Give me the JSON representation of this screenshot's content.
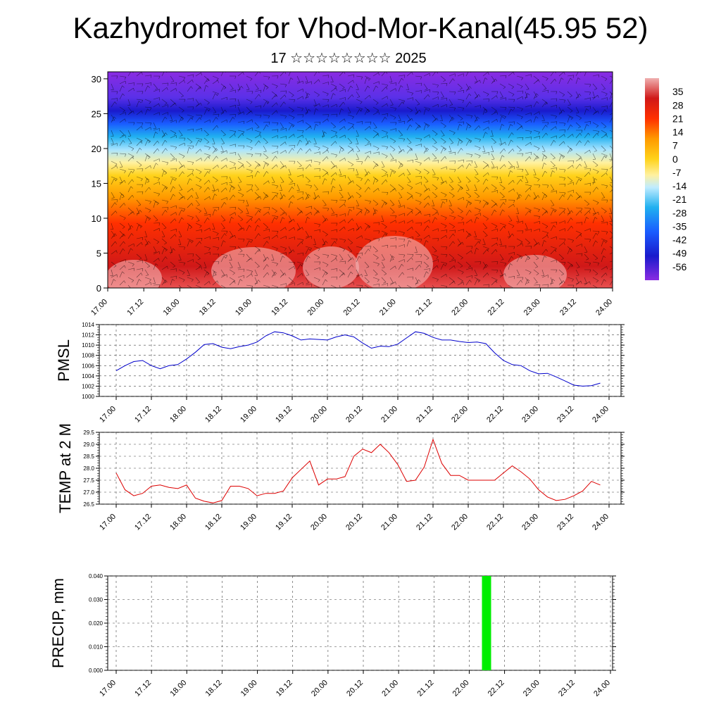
{
  "title": "Kazhydromet for Vhod-Mor-Kanal(45.95 52)",
  "subtitle": "17 ☆☆☆☆☆☆☆☆ 2025",
  "time_ticks": [
    "17.00",
    "17.12",
    "18.00",
    "18.12",
    "19.00",
    "19.12",
    "20.00",
    "20.12",
    "21.00",
    "21.12",
    "22.00",
    "22.12",
    "23.00",
    "23.12",
    "24.00"
  ],
  "chart_data": [
    {
      "type": "heatmap",
      "title": "",
      "xlabel": "",
      "ylabel": "",
      "ylim": [
        0,
        31
      ],
      "yticks": [
        0,
        5,
        10,
        15,
        20,
        25,
        30
      ],
      "colorbar_labels": [
        "35",
        "28",
        "21",
        "14",
        "7",
        "0",
        "-7",
        "-14",
        "-21",
        "-28",
        "-35",
        "-42",
        "-49",
        "-56"
      ],
      "colorbar_range": [
        -63,
        42
      ],
      "colors": {
        "warm": "#cc0000",
        "mid": "#ffd21a",
        "cold": "#1a1aff",
        "top": "#8a2be2"
      },
      "overlay": "wind barbs"
    },
    {
      "type": "line",
      "ylabel": "PMSL",
      "ylim": [
        1000,
        1014
      ],
      "yticks": [
        "1000",
        "1002",
        "1004",
        "1006",
        "1008",
        "1010",
        "1012",
        "1014"
      ],
      "color": "#0000cc",
      "x": [
        0,
        0.125,
        0.25,
        0.375,
        0.5,
        0.625,
        0.75,
        0.875,
        1,
        1.125,
        1.25,
        1.375,
        1.5,
        1.625,
        1.75,
        1.875,
        2,
        2.125,
        2.25,
        2.375,
        2.5,
        2.625,
        2.75,
        2.875,
        3,
        3.125,
        3.25,
        3.375,
        3.5,
        3.625,
        3.75,
        3.875,
        4,
        4.125,
        4.25,
        4.375,
        4.5,
        4.625,
        4.75,
        4.875,
        5,
        5.125,
        5.25,
        5.375,
        5.5,
        5.625,
        5.75,
        5.875,
        6,
        6.125,
        6.25,
        6.375,
        6.5,
        6.625,
        6.75,
        6.875
      ],
      "values": [
        1005.0,
        1006.0,
        1006.8,
        1007.0,
        1006.0,
        1005.4,
        1006.0,
        1006.2,
        1007.3,
        1008.6,
        1010.1,
        1010.3,
        1009.6,
        1009.3,
        1009.7,
        1010.0,
        1010.6,
        1011.8,
        1012.6,
        1012.4,
        1011.8,
        1011.0,
        1011.2,
        1011.1,
        1011.0,
        1011.6,
        1012.0,
        1011.6,
        1010.4,
        1009.4,
        1009.8,
        1009.7,
        1010.2,
        1011.4,
        1012.6,
        1012.3,
        1011.5,
        1011.0,
        1011.0,
        1010.7,
        1010.5,
        1010.6,
        1010.3,
        1008.5,
        1007.0,
        1006.2,
        1006.0,
        1005.0,
        1004.4,
        1004.5,
        1003.8,
        1003.0,
        1002.2,
        1002.0,
        1002.1,
        1002.6
      ]
    },
    {
      "type": "line",
      "ylabel": "TEMP at 2 M",
      "ylim": [
        26.5,
        29.5
      ],
      "yticks": [
        "26.5",
        "27.0",
        "27.5",
        "28.0",
        "28.5",
        "29.0",
        "29.5"
      ],
      "color": "#dd0000",
      "x": [
        0,
        0.125,
        0.25,
        0.375,
        0.5,
        0.625,
        0.75,
        0.875,
        1,
        1.125,
        1.25,
        1.375,
        1.5,
        1.625,
        1.75,
        1.875,
        2,
        2.125,
        2.25,
        2.375,
        2.5,
        2.625,
        2.75,
        2.875,
        3,
        3.125,
        3.25,
        3.375,
        3.5,
        3.625,
        3.75,
        3.875,
        4,
        4.125,
        4.25,
        4.375,
        4.5,
        4.625,
        4.75,
        4.875,
        5,
        5.125,
        5.25,
        5.375,
        5.5,
        5.625,
        5.75,
        5.875,
        6,
        6.125,
        6.25,
        6.375,
        6.5,
        6.625,
        6.75,
        6.875
      ],
      "values": [
        27.8,
        27.1,
        26.85,
        26.95,
        27.25,
        27.3,
        27.2,
        27.15,
        27.3,
        26.75,
        26.62,
        26.55,
        26.65,
        27.25,
        27.25,
        27.15,
        26.85,
        26.95,
        26.95,
        27.05,
        27.6,
        27.95,
        28.3,
        27.3,
        27.55,
        27.55,
        27.65,
        28.5,
        28.8,
        28.65,
        29.0,
        28.65,
        28.15,
        27.45,
        27.5,
        28.05,
        29.2,
        28.2,
        27.7,
        27.7,
        27.5,
        27.5,
        27.5,
        27.5,
        27.8,
        28.1,
        27.85,
        27.55,
        27.1,
        26.8,
        26.65,
        26.7,
        26.85,
        27.05,
        27.45,
        27.3
      ]
    },
    {
      "type": "bar",
      "ylabel": "PRECIP, mm",
      "ylim": [
        0,
        0.04
      ],
      "yticks": [
        "0.000",
        "0.010",
        "0.020",
        "0.030",
        "0.040"
      ],
      "color": "#00ee00",
      "x": [
        5.25
      ],
      "values": [
        0.04
      ]
    }
  ]
}
